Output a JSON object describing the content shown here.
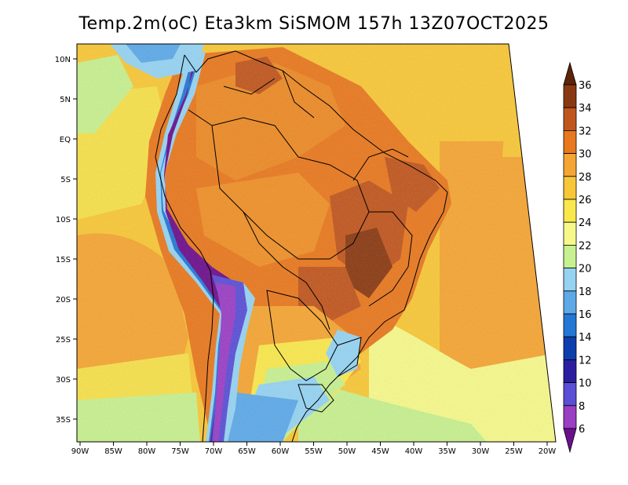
{
  "title": "Temp.2m(oC) Eta3km SiSMOM 157h 13Z07OCT2025",
  "lat_ticks": [
    "10N",
    "5N",
    "EQ",
    "5S",
    "10S",
    "15S",
    "20S",
    "25S",
    "30S",
    "35S"
  ],
  "lon_ticks": [
    "90W",
    "85W",
    "80W",
    "75W",
    "70W",
    "65W",
    "60W",
    "55W",
    "50W",
    "45W",
    "40W",
    "35W",
    "30W",
    "25W",
    "20W"
  ],
  "colorbar": {
    "labels": [
      "36",
      "34",
      "32",
      "30",
      "28",
      "26",
      "24",
      "22",
      "20",
      "18",
      "16",
      "14",
      "12",
      "10",
      "8",
      "6"
    ],
    "colors": [
      "#5e2308",
      "#8a3a12",
      "#c0561e",
      "#e8781e",
      "#f5a533",
      "#f8c737",
      "#f9e84c",
      "#f6f98a",
      "#c7f08f",
      "#95d3f2",
      "#5da9e8",
      "#2477d4",
      "#0c3fae",
      "#2c1ea0",
      "#5a4fd6",
      "#9a3ec4",
      "#6d0f8c"
    ]
  }
}
